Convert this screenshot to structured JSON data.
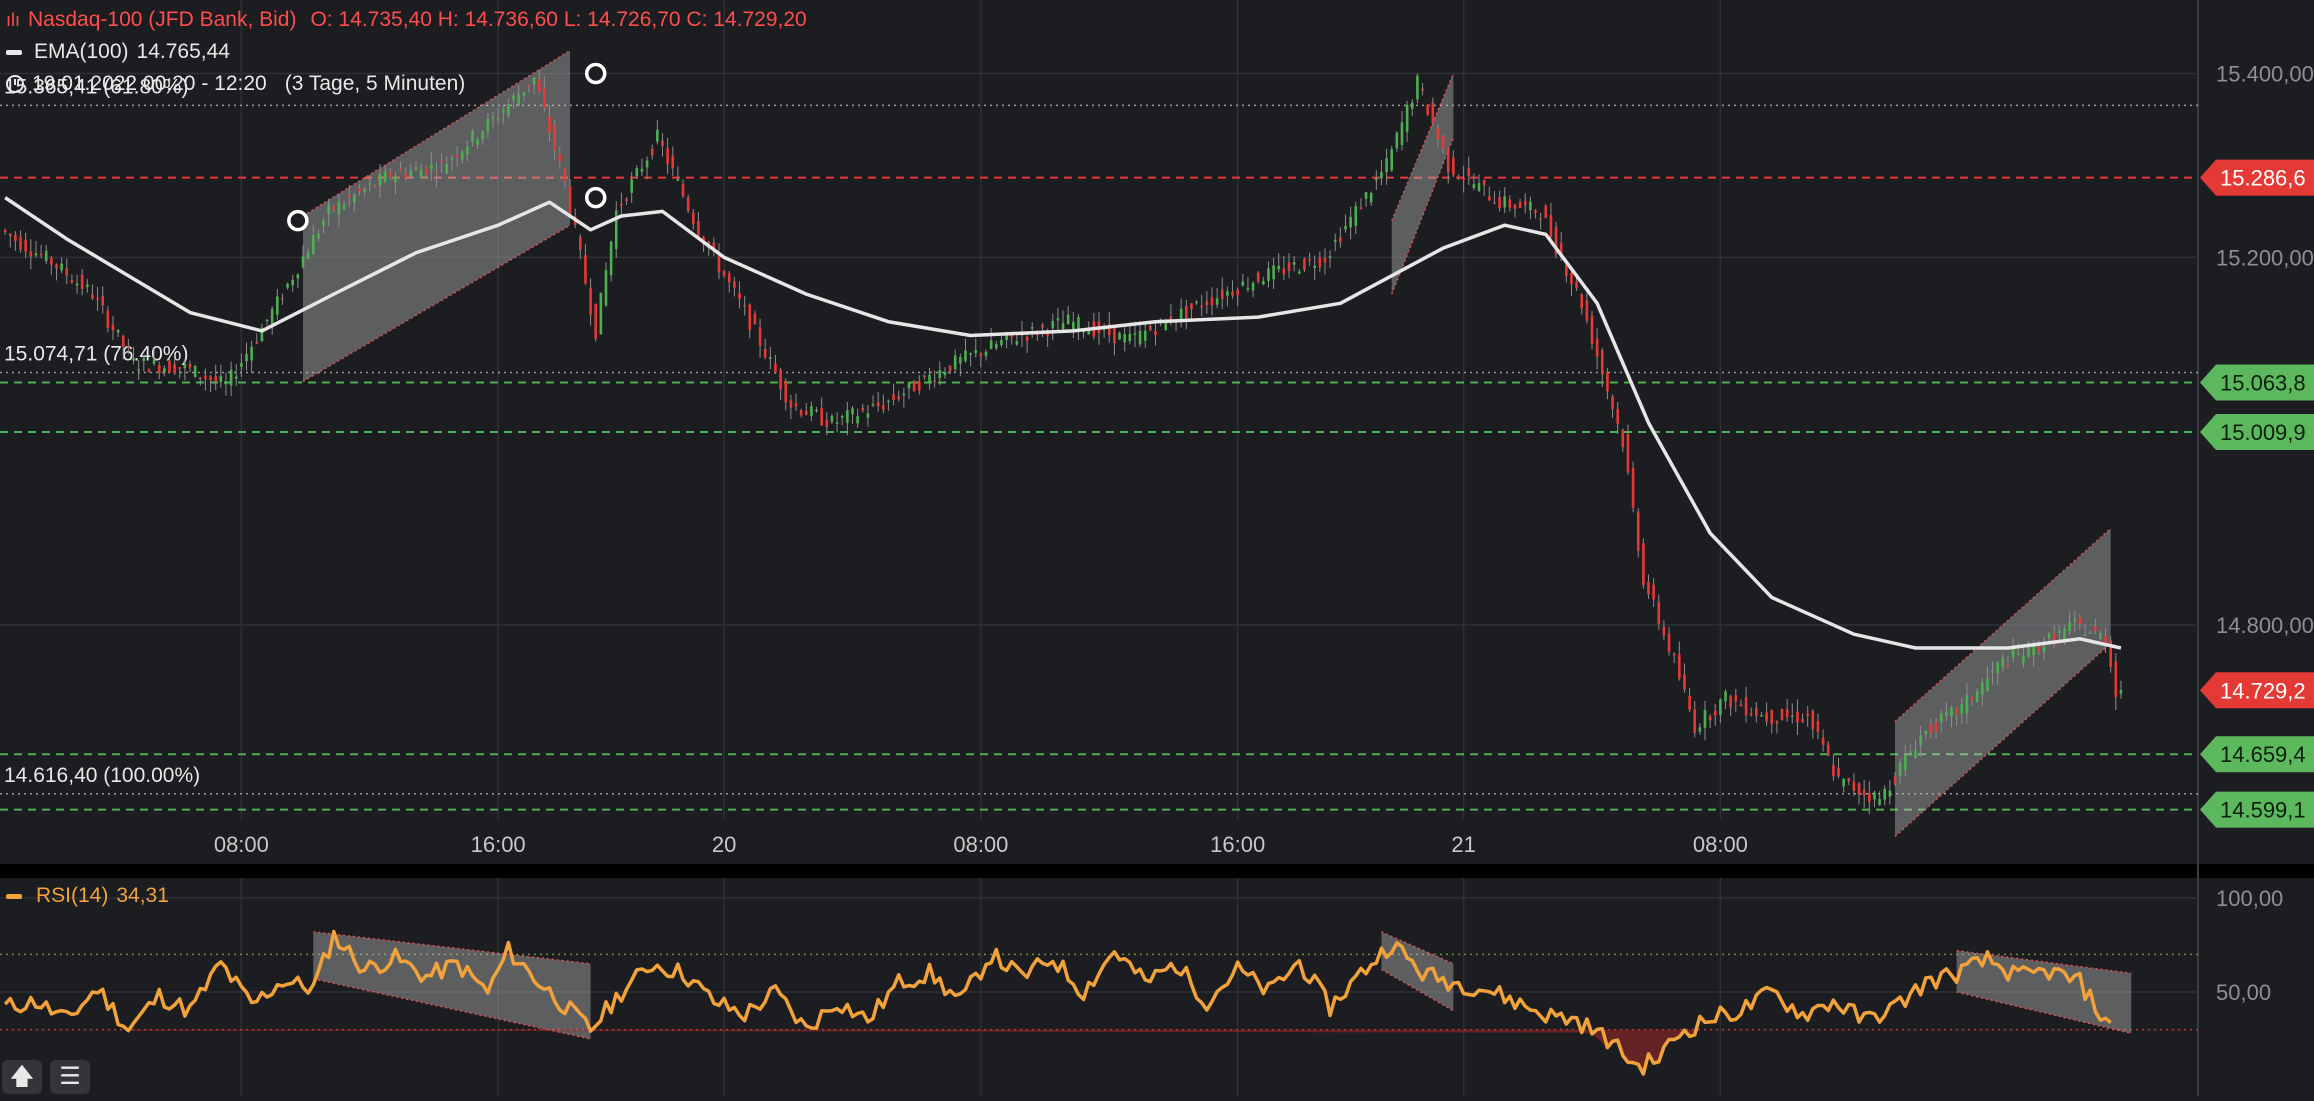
{
  "header": {
    "instrument": "Nasdaq-100 (JFD Bank, Bid)",
    "ohlc": "O: 14.735,40  H: 14.736,60  L: 14.726,70  C: 14.729,20",
    "ema_label": "EMA(100)",
    "ema_value": "14.765,44",
    "period": "19.01.2022 00:20 - 12:20",
    "period_detail": "(3 Tage, 5 Minuten)"
  },
  "rsi_legend": {
    "label": "RSI(14)",
    "value": "34,31"
  },
  "toolbar": {
    "up_glyph": "🡅",
    "menu_glyph": "☰"
  },
  "colors": {
    "background": "#1c1d21",
    "price_up": "#4caf50",
    "price_down": "#e53935",
    "ema": "#e6e6e6",
    "rsi": "#f2a23a",
    "resistance": "#e53935",
    "support": "#4caf50",
    "fib": "#9a9a9a"
  },
  "chart_data": [
    {
      "type": "line",
      "title": "Nasdaq-100 (JFD Bank, Bid)",
      "ylim": [
        14540,
        15480
      ],
      "y_ticks": [
        "15.400,00",
        "15.200,00",
        "14.800,00"
      ],
      "x_ticks": [
        "08:00",
        "16:00",
        "20",
        "08:00",
        "16:00",
        "21",
        "08:00"
      ],
      "price_path": [
        [
          0,
          15230
        ],
        [
          5,
          15195
        ],
        [
          9,
          15160
        ],
        [
          13,
          15085
        ],
        [
          18,
          15080
        ],
        [
          22,
          15060
        ],
        [
          27,
          15150
        ],
        [
          32,
          15250
        ],
        [
          38,
          15290
        ],
        [
          43,
          15300
        ],
        [
          48,
          15350
        ],
        [
          52,
          15395
        ],
        [
          55,
          15280
        ],
        [
          58,
          15120
        ],
        [
          60,
          15250
        ],
        [
          64,
          15330
        ],
        [
          68,
          15230
        ],
        [
          73,
          15130
        ],
        [
          77,
          15040
        ],
        [
          81,
          15020
        ],
        [
          86,
          15040
        ],
        [
          92,
          15080
        ],
        [
          98,
          15110
        ],
        [
          104,
          15130
        ],
        [
          110,
          15110
        ],
        [
          117,
          15150
        ],
        [
          123,
          15180
        ],
        [
          129,
          15200
        ],
        [
          135,
          15300
        ],
        [
          138,
          15390
        ],
        [
          141,
          15300
        ],
        [
          146,
          15260
        ],
        [
          150,
          15250
        ],
        [
          154,
          15150
        ],
        [
          158,
          15000
        ],
        [
          160,
          14850
        ],
        [
          163,
          14760
        ],
        [
          165,
          14690
        ],
        [
          168,
          14720
        ],
        [
          172,
          14700
        ],
        [
          176,
          14700
        ],
        [
          179,
          14630
        ],
        [
          183,
          14610
        ],
        [
          187,
          14680
        ],
        [
          191,
          14710
        ],
        [
          195,
          14760
        ],
        [
          199,
          14780
        ],
        [
          202,
          14800
        ],
        [
          205,
          14785
        ],
        [
          206,
          14729
        ]
      ],
      "ema_path": [
        [
          0,
          15265
        ],
        [
          6,
          15220
        ],
        [
          12,
          15180
        ],
        [
          18,
          15140
        ],
        [
          25,
          15120
        ],
        [
          32,
          15160
        ],
        [
          40,
          15205
        ],
        [
          48,
          15235
        ],
        [
          53,
          15260
        ],
        [
          57,
          15230
        ],
        [
          60,
          15245
        ],
        [
          64,
          15250
        ],
        [
          70,
          15200
        ],
        [
          78,
          15160
        ],
        [
          86,
          15130
        ],
        [
          94,
          15115
        ],
        [
          104,
          15120
        ],
        [
          112,
          15130
        ],
        [
          122,
          15135
        ],
        [
          130,
          15150
        ],
        [
          140,
          15210
        ],
        [
          146,
          15235
        ],
        [
          150,
          15225
        ],
        [
          155,
          15150
        ],
        [
          160,
          15020
        ],
        [
          166,
          14900
        ],
        [
          172,
          14830
        ],
        [
          180,
          14790
        ],
        [
          186,
          14775
        ],
        [
          195,
          14775
        ],
        [
          202,
          14785
        ],
        [
          206,
          14775
        ]
      ],
      "levels": {
        "resistance": [
          15286.69
        ],
        "support": [
          15063.88,
          15009.99,
          14659.46,
          14599.16
        ]
      },
      "level_labels": {
        "resistance": [
          "15.286,6"
        ],
        "support": [
          "15.063,8",
          "15.009,9",
          "14.659,4",
          "14.599,1"
        ],
        "last_price": "14.729,2"
      },
      "fibonacci": [
        {
          "value": 15365.41,
          "label": "15.365,41 (61.80%)"
        },
        {
          "value": 15074.71,
          "label": "15.074,71 (76.40%)"
        },
        {
          "value": 14616.4,
          "label": "14.616,40 (100.00%)"
        }
      ],
      "channels": [
        {
          "x0": 29,
          "x1": 55,
          "top0": 15245,
          "top1": 15425,
          "bottom0": 15065,
          "bottom1": 15235
        },
        {
          "x0": 135,
          "x1": 141,
          "top0": 15240,
          "top1": 15400,
          "bottom0": 15160,
          "bottom1": 15330
        },
        {
          "x0": 184,
          "x1": 205,
          "top0": 14695,
          "top1": 14905,
          "bottom0": 14570,
          "bottom1": 14780
        }
      ],
      "anchors": [
        {
          "x": 28.5,
          "y": 15240
        },
        {
          "x": 57.5,
          "y": 15400
        },
        {
          "x": 57.5,
          "y": 15265
        }
      ]
    },
    {
      "type": "line",
      "title": "RSI(14)",
      "ylim": [
        0,
        100
      ],
      "y_ticks": [
        "100,00",
        "50,00"
      ],
      "overbought": 70,
      "oversold": 30,
      "rsi_path": [
        [
          0,
          42
        ],
        [
          3,
          45
        ],
        [
          6,
          35
        ],
        [
          9,
          52
        ],
        [
          12,
          30
        ],
        [
          15,
          48
        ],
        [
          18,
          40
        ],
        [
          21,
          65
        ],
        [
          24,
          43
        ],
        [
          27,
          56
        ],
        [
          30,
          52
        ],
        [
          32,
          80
        ],
        [
          35,
          62
        ],
        [
          38,
          68
        ],
        [
          41,
          58
        ],
        [
          44,
          65
        ],
        [
          47,
          50
        ],
        [
          49,
          72
        ],
        [
          52,
          55
        ],
        [
          55,
          40
        ],
        [
          57,
          30
        ],
        [
          60,
          50
        ],
        [
          63,
          65
        ],
        [
          66,
          60
        ],
        [
          69,
          45
        ],
        [
          72,
          38
        ],
        [
          75,
          50
        ],
        [
          78,
          30
        ],
        [
          81,
          45
        ],
        [
          84,
          35
        ],
        [
          87,
          55
        ],
        [
          90,
          60
        ],
        [
          93,
          45
        ],
        [
          96,
          70
        ],
        [
          99,
          58
        ],
        [
          102,
          68
        ],
        [
          105,
          50
        ],
        [
          108,
          72
        ],
        [
          111,
          55
        ],
        [
          114,
          65
        ],
        [
          117,
          45
        ],
        [
          120,
          62
        ],
        [
          123,
          50
        ],
        [
          126,
          66
        ],
        [
          129,
          42
        ],
        [
          132,
          60
        ],
        [
          135,
          76
        ],
        [
          138,
          60
        ],
        [
          141,
          55
        ],
        [
          144,
          52
        ],
        [
          147,
          45
        ],
        [
          150,
          38
        ],
        [
          153,
          35
        ],
        [
          156,
          25
        ],
        [
          159,
          10
        ],
        [
          161,
          15
        ],
        [
          163,
          28
        ],
        [
          166,
          36
        ],
        [
          169,
          40
        ],
        [
          172,
          50
        ],
        [
          175,
          38
        ],
        [
          178,
          45
        ],
        [
          181,
          35
        ],
        [
          184,
          42
        ],
        [
          187,
          55
        ],
        [
          190,
          60
        ],
        [
          193,
          67
        ],
        [
          196,
          58
        ],
        [
          199,
          61
        ],
        [
          202,
          55
        ],
        [
          205,
          30
        ]
      ],
      "channels": [
        {
          "x0": 30,
          "x1": 57,
          "top0": 82,
          "top1": 65,
          "bottom0": 57,
          "bottom1": 25
        },
        {
          "x0": 134,
          "x1": 141,
          "top0": 82,
          "top1": 65,
          "bottom0": 62,
          "bottom1": 40
        },
        {
          "x0": 190,
          "x1": 207,
          "top0": 72,
          "top1": 60,
          "bottom0": 50,
          "bottom1": 28
        }
      ]
    }
  ]
}
